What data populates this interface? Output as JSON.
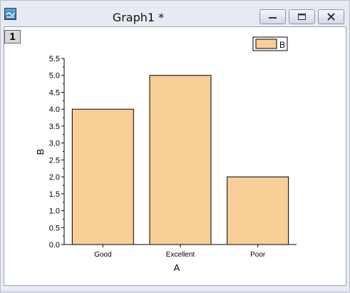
{
  "window": {
    "title": "Graph1 *",
    "layer_label": "1",
    "controls": [
      "minimize-icon",
      "restore-icon",
      "close-icon"
    ]
  },
  "colors": {
    "bar_fill": "#f7cf97",
    "bar_stroke": "#000000",
    "window_bg": "#e9ecf4",
    "plot_bg": "#ffffff"
  },
  "chart_data": {
    "type": "bar",
    "categories": [
      "Good",
      "Excellent",
      "Poor"
    ],
    "series": [
      {
        "name": "B",
        "values": [
          4.0,
          5.0,
          2.0
        ]
      }
    ],
    "xlabel": "A",
    "ylabel": "B",
    "ylim": [
      0,
      5.5
    ],
    "y_ticks": [
      "0.0",
      "0.5",
      "1.0",
      "1.5",
      "2.0",
      "2.5",
      "3.0",
      "3.5",
      "4.0",
      "4.5",
      "5.0",
      "5.5"
    ],
    "y_minor_ticks": true,
    "grid": false,
    "legend": {
      "position": "top-right",
      "entries": [
        "B"
      ]
    }
  }
}
